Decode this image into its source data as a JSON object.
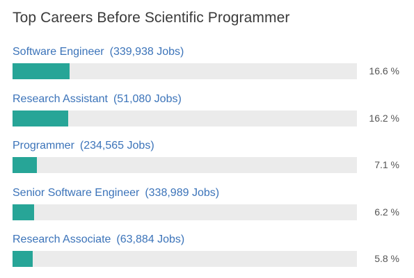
{
  "title": "Top Careers Before Scientific Programmer",
  "careers": [
    {
      "name": "Software Engineer",
      "jobs": "(339,938 Jobs)",
      "percent_label": "16.6 %"
    },
    {
      "name": "Research Assistant",
      "jobs": "(51,080 Jobs)",
      "percent_label": "16.2 %"
    },
    {
      "name": "Programmer",
      "jobs": "(234,565 Jobs)",
      "percent_label": "7.1 %"
    },
    {
      "name": "Senior Software Engineer",
      "jobs": "(338,989 Jobs)",
      "percent_label": "6.2 %"
    },
    {
      "name": "Research Associate",
      "jobs": "(63,884 Jobs)",
      "percent_label": "5.8 %"
    }
  ],
  "colors": {
    "bar_fill": "#27a597",
    "bar_track": "#ebebeb",
    "link": "#3b73b9",
    "title": "#3a3a3a"
  },
  "chart_data": {
    "type": "bar",
    "orientation": "horizontal",
    "title": "Top Careers Before Scientific Programmer",
    "categories": [
      "Software Engineer",
      "Research Assistant",
      "Programmer",
      "Senior Software Engineer",
      "Research Associate"
    ],
    "values": [
      16.6,
      16.2,
      7.1,
      6.2,
      5.8
    ],
    "unit": "%",
    "xlim": [
      0,
      100
    ],
    "grid": false,
    "legend": "none"
  }
}
